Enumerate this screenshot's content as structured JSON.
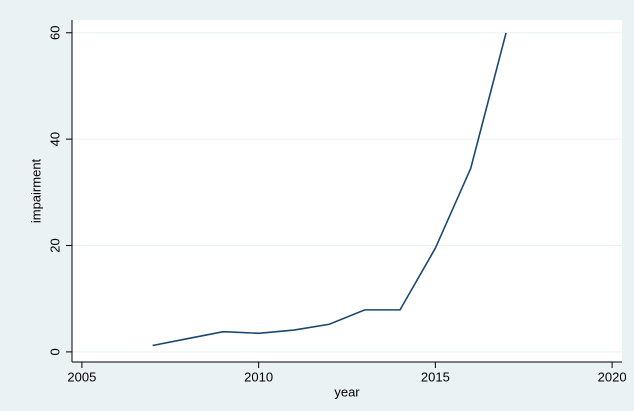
{
  "chart_data": {
    "type": "line",
    "x_label": "year",
    "y_label": "impairment",
    "x": [
      2007,
      2008,
      2009,
      2010,
      2011,
      2012,
      2013,
      2014,
      2015,
      2016,
      2017
    ],
    "series": [
      {
        "name": "impairment",
        "color": "#1a476f",
        "values": [
          1.2,
          2.5,
          3.8,
          3.5,
          4.1,
          5.2,
          7.9,
          7.9,
          19.5,
          34.5,
          60
        ]
      }
    ],
    "xlim": [
      2004.72,
      2020.28
    ],
    "xticks": [
      2005,
      2010,
      2015,
      2020
    ],
    "ylim": [
      -1.9,
      62.4
    ],
    "yticks": [
      0,
      20,
      40,
      60
    ],
    "grid": true
  }
}
